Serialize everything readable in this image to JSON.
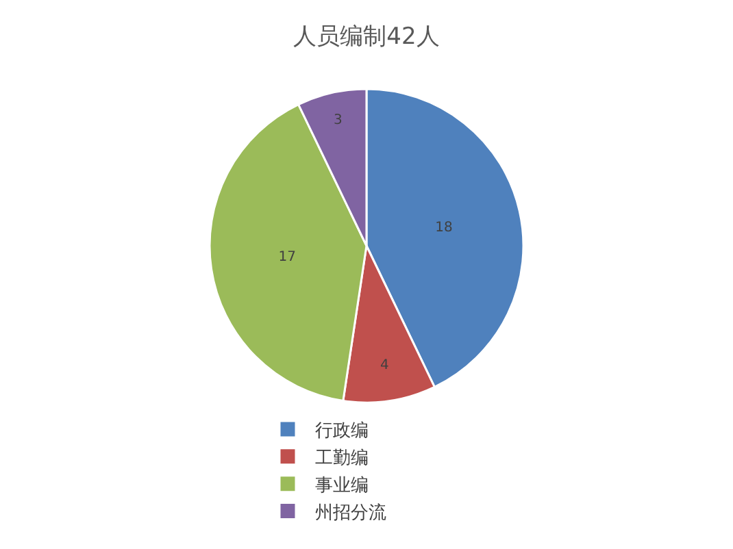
{
  "chart_data": {
    "type": "pie",
    "title": "人员编制42人",
    "categories": [
      "行政编",
      "工勤编",
      "事业编",
      "州招分流"
    ],
    "values": [
      18,
      4,
      17,
      3
    ],
    "colors": [
      "#4f81bd",
      "#c0504d",
      "#9bbb59",
      "#8064a2"
    ],
    "data_labels": true,
    "legend": "bottom"
  }
}
